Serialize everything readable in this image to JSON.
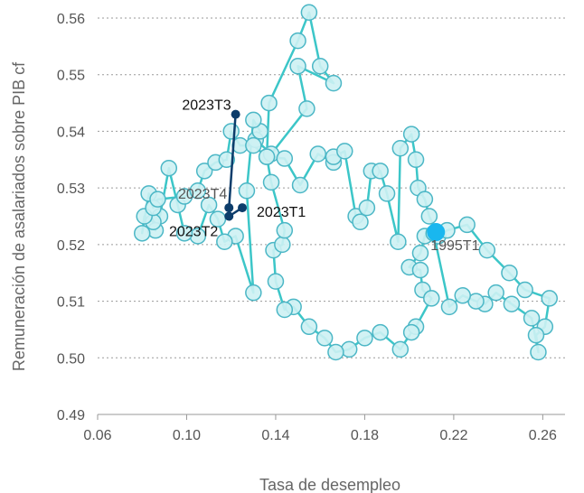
{
  "chart_data": {
    "type": "scatter",
    "title": "",
    "xlabel": "Tasa de desempleo",
    "ylabel": "Remuneración de asalariados sobre PIB cf",
    "xlim": [
      0.06,
      0.27
    ],
    "ylim": [
      0.49,
      0.56
    ],
    "x_ticks": [
      "0.06",
      "0.10",
      "0.14",
      "0.18",
      "0.22",
      "0.26"
    ],
    "x_tick_values": [
      0.06,
      0.1,
      0.14,
      0.18,
      0.22,
      0.26
    ],
    "y_ticks": [
      "0.49",
      "0.50",
      "0.51",
      "0.52",
      "0.53",
      "0.54",
      "0.55",
      "0.56"
    ],
    "y_tick_values": [
      0.49,
      0.5,
      0.51,
      0.52,
      0.53,
      0.54,
      0.55,
      0.56
    ],
    "grid": "horizontal dotted",
    "colors": {
      "path_line": "#3cc6c8",
      "marker_fill": "#cdf1f3",
      "marker_stroke": "#4cb7c6",
      "highlight_line": "#0d3d6b",
      "highlight_point": "#0d3d6b",
      "start_point": "#19b7ef",
      "grid": "#9a9a9a",
      "axis": "#999999"
    },
    "series": [
      {
        "role": "historical-path",
        "points": [
          [
            0.212,
            0.5222
          ],
          [
            0.207,
            0.5215
          ],
          [
            0.205,
            0.5185
          ],
          [
            0.2,
            0.516
          ],
          [
            0.205,
            0.5155
          ],
          [
            0.206,
            0.512
          ],
          [
            0.21,
            0.5105
          ],
          [
            0.203,
            0.5055
          ],
          [
            0.201,
            0.5045
          ],
          [
            0.196,
            0.5015
          ],
          [
            0.187,
            0.5045
          ],
          [
            0.18,
            0.5035
          ],
          [
            0.173,
            0.5015
          ],
          [
            0.167,
            0.501
          ],
          [
            0.162,
            0.5035
          ],
          [
            0.155,
            0.5055
          ],
          [
            0.148,
            0.509
          ],
          [
            0.144,
            0.5085
          ],
          [
            0.14,
            0.5135
          ],
          [
            0.139,
            0.519
          ],
          [
            0.143,
            0.52
          ],
          [
            0.144,
            0.5225
          ],
          [
            0.138,
            0.531
          ],
          [
            0.136,
            0.5355
          ],
          [
            0.137,
            0.545
          ],
          [
            0.15,
            0.556
          ],
          [
            0.155,
            0.561
          ],
          [
            0.16,
            0.5515
          ],
          [
            0.166,
            0.5485
          ],
          [
            0.15,
            0.5515
          ],
          [
            0.154,
            0.544
          ],
          [
            0.138,
            0.536
          ],
          [
            0.131,
            0.5385
          ],
          [
            0.133,
            0.54
          ],
          [
            0.13,
            0.542
          ],
          [
            0.127,
            0.5295
          ],
          [
            0.13,
            0.5115
          ],
          [
            0.122,
            0.5215
          ],
          [
            0.117,
            0.5205
          ],
          [
            0.114,
            0.5245
          ],
          [
            0.11,
            0.527
          ],
          [
            0.105,
            0.5215
          ],
          [
            0.099,
            0.522
          ],
          [
            0.096,
            0.527
          ],
          [
            0.092,
            0.5335
          ],
          [
            0.088,
            0.525
          ],
          [
            0.086,
            0.5225
          ],
          [
            0.085,
            0.524
          ],
          [
            0.081,
            0.525
          ],
          [
            0.08,
            0.522
          ],
          [
            0.083,
            0.529
          ],
          [
            0.085,
            0.5265
          ],
          [
            0.087,
            0.528
          ],
          [
            0.099,
            0.5285
          ],
          [
            0.105,
            0.5295
          ],
          [
            0.108,
            0.533
          ],
          [
            0.113,
            0.5345
          ],
          [
            0.118,
            0.535
          ],
          [
            0.12,
            0.54
          ],
          [
            0.124,
            0.5375
          ],
          [
            0.13,
            0.5375
          ],
          [
            0.136,
            0.5355
          ],
          [
            0.144,
            0.5352
          ],
          [
            0.151,
            0.5305
          ],
          [
            0.159,
            0.536
          ],
          [
            0.166,
            0.5345
          ],
          [
            0.166,
            0.5355
          ],
          [
            0.171,
            0.5365
          ],
          [
            0.176,
            0.525
          ],
          [
            0.178,
            0.524
          ],
          [
            0.181,
            0.5265
          ],
          [
            0.183,
            0.533
          ],
          [
            0.187,
            0.533
          ],
          [
            0.19,
            0.529
          ],
          [
            0.195,
            0.5205
          ],
          [
            0.196,
            0.537
          ],
          [
            0.201,
            0.5395
          ],
          [
            0.203,
            0.535
          ],
          [
            0.204,
            0.53
          ],
          [
            0.207,
            0.528
          ],
          [
            0.209,
            0.525
          ],
          [
            0.213,
            0.5215
          ],
          [
            0.217,
            0.5225
          ],
          [
            0.226,
            0.5235
          ],
          [
            0.235,
            0.519
          ],
          [
            0.245,
            0.515
          ],
          [
            0.252,
            0.512
          ],
          [
            0.263,
            0.5105
          ],
          [
            0.261,
            0.5055
          ],
          [
            0.257,
            0.504
          ],
          [
            0.258,
            0.501
          ],
          [
            0.255,
            0.507
          ],
          [
            0.246,
            0.5095
          ],
          [
            0.239,
            0.5115
          ],
          [
            0.234,
            0.5095
          ],
          [
            0.23,
            0.51
          ],
          [
            0.224,
            0.511
          ],
          [
            0.218,
            0.509
          ],
          [
            0.211,
            0.522
          ]
        ]
      },
      {
        "role": "recent-path",
        "points": [
          [
            0.122,
            0.543
          ],
          [
            0.119,
            0.5265
          ],
          [
            0.119,
            0.525
          ],
          [
            0.125,
            0.5265
          ]
        ]
      }
    ],
    "annotations": [
      {
        "text": "1995T1",
        "x": 0.212,
        "y": 0.5222,
        "style": "start"
      },
      {
        "text": "2023T1",
        "x": 0.125,
        "y": 0.5265,
        "style": "recent"
      },
      {
        "text": "2023T2",
        "x": 0.119,
        "y": 0.525,
        "style": "recent"
      },
      {
        "text": "2023T3",
        "x": 0.122,
        "y": 0.543,
        "style": "recent"
      },
      {
        "text": "2023T4",
        "x": 0.119,
        "y": 0.5265,
        "style": "faded"
      }
    ]
  }
}
